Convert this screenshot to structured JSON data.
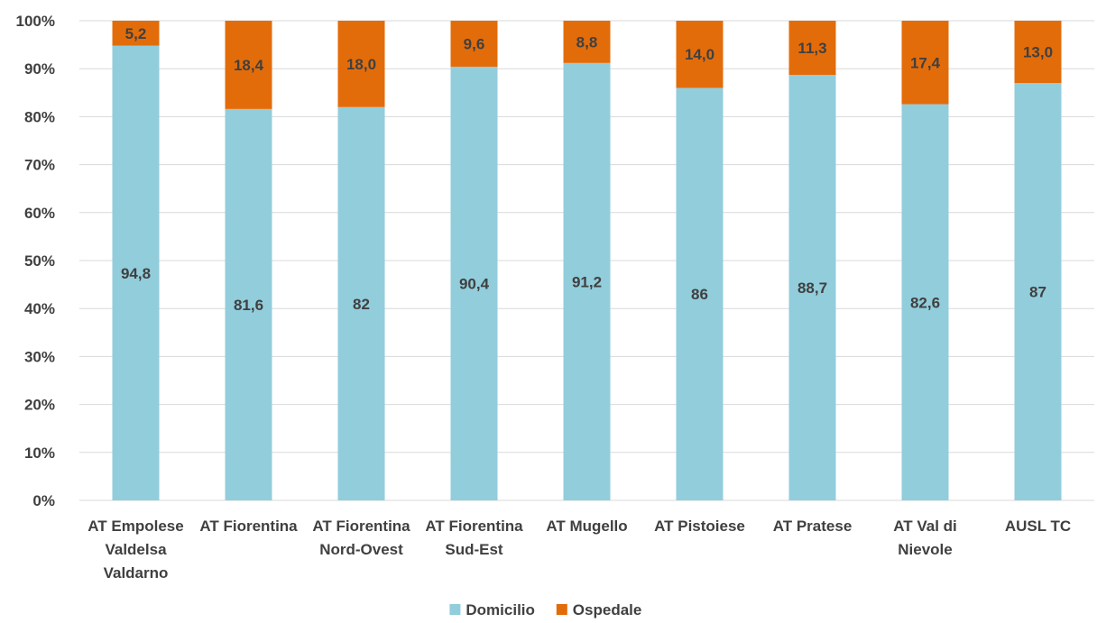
{
  "chart_data": {
    "type": "bar",
    "stacked": true,
    "percent": true,
    "categories": [
      [
        "AT Empolese",
        "Valdelsa",
        "Valdarno"
      ],
      [
        "AT Fiorentina"
      ],
      [
        "AT Fiorentina",
        "Nord-Ovest"
      ],
      [
        "AT Fiorentina",
        "Sud-Est"
      ],
      [
        "AT Mugello"
      ],
      [
        "AT Pistoiese"
      ],
      [
        "AT Pratese"
      ],
      [
        "AT Val di",
        "Nievole"
      ],
      [
        "AUSL TC"
      ]
    ],
    "series": [
      {
        "name": "Domicilio",
        "color": "#92cddc",
        "values": [
          94.8,
          81.6,
          82,
          90.4,
          91.2,
          86,
          88.7,
          82.6,
          87
        ],
        "labels": [
          "94,8",
          "81,6",
          "82",
          "90,4",
          "91,2",
          "86",
          "88,7",
          "82,6",
          "87"
        ]
      },
      {
        "name": "Ospedale",
        "color": "#e36c0a",
        "values": [
          5.2,
          18.4,
          18.0,
          9.6,
          8.8,
          14.0,
          11.3,
          17.4,
          13.0
        ],
        "labels": [
          "5,2",
          "18,4",
          "18,0",
          "9,6",
          "8,8",
          "14,0",
          "11,3",
          "17,4",
          "13,0"
        ]
      }
    ],
    "yticks": [
      "0%",
      "10%",
      "20%",
      "30%",
      "40%",
      "50%",
      "60%",
      "70%",
      "80%",
      "90%",
      "100%"
    ],
    "ylim": [
      0,
      100
    ],
    "grid": true,
    "legend_position": "bottom",
    "title": "",
    "xlabel": "",
    "ylabel": ""
  }
}
